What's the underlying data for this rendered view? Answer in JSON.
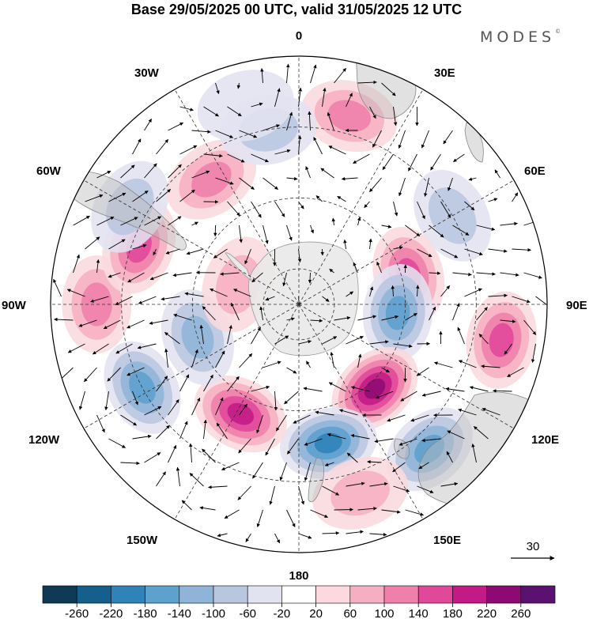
{
  "title": "Base 29/05/2025 00 UTC, valid 31/05/2025 12 UTC",
  "brand": "MODES",
  "brand_mark": "©",
  "longitude_labels": {
    "l0": "0",
    "l30e": "30E",
    "l60e": "60E",
    "l90e": "90E",
    "l120e": "120E",
    "l150e": "150E",
    "l180": "180",
    "l150w": "150W",
    "l120w": "120W",
    "l90w": "90W",
    "l60w": "60W",
    "l30w": "30W"
  },
  "reference_vector": {
    "value": "30"
  },
  "colorbar": {
    "colors": [
      "#0e3a56",
      "#145f8c",
      "#2f83b8",
      "#5da1cd",
      "#8fb4d7",
      "#b9c6e0",
      "#e2e3f0",
      "#ffffff",
      "#fbd9de",
      "#f6afc2",
      "#ef7fab",
      "#e0489a",
      "#c21b85",
      "#8e0a72",
      "#5a1271"
    ],
    "labels": [
      "-260",
      "-220",
      "-180",
      "-140",
      "-100",
      "-60",
      "-20",
      "20",
      "60",
      "100",
      "140",
      "180",
      "220",
      "260"
    ]
  },
  "anomaly_centers": [
    {
      "lon": 15,
      "lat": -35,
      "value": 120
    },
    {
      "lon": 60,
      "lat": -40,
      "value": -60
    },
    {
      "lon": 75,
      "lat": -58,
      "value": 160
    },
    {
      "lon": 95,
      "lat": -62,
      "value": -140
    },
    {
      "lon": 100,
      "lat": -32,
      "value": 130
    },
    {
      "lon": 138,
      "lat": -58,
      "value": 230
    },
    {
      "lon": 138,
      "lat": -35,
      "value": -130
    },
    {
      "lon": 168,
      "lat": -50,
      "value": -200
    },
    {
      "lon": 162,
      "lat": -34,
      "value": 50
    },
    {
      "lon": -152,
      "lat": -55,
      "value": 200
    },
    {
      "lon": -118,
      "lat": -40,
      "value": -160
    },
    {
      "lon": -108,
      "lat": -60,
      "value": -120
    },
    {
      "lon": -90,
      "lat": -33,
      "value": 90
    },
    {
      "lon": -70,
      "lat": -42,
      "value": 130
    },
    {
      "lon": -60,
      "lat": -35,
      "value": -80
    },
    {
      "lon": -35,
      "lat": -47,
      "value": 100
    },
    {
      "lon": -10,
      "lat": -40,
      "value": -50
    },
    {
      "lon": -72,
      "lat": -72,
      "value": 80
    },
    {
      "lon": -15,
      "lat": -32,
      "value": -30
    }
  ]
}
